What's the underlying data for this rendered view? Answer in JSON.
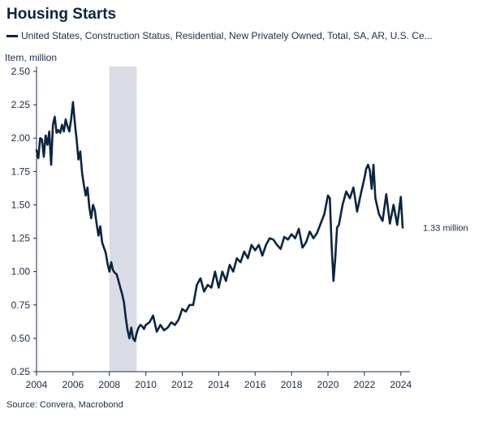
{
  "chart_data": {
    "type": "line",
    "title": "Housing Starts",
    "ylabel": "Item, million",
    "xlim": [
      2004,
      2024.5
    ],
    "ylim": [
      0.25,
      2.5
    ],
    "yticks": [
      0.25,
      0.5,
      0.75,
      1.0,
      1.25,
      1.5,
      1.75,
      2.0,
      2.25,
      2.5
    ],
    "ytick_labels": [
      "0.25",
      "0.50",
      "0.75",
      "1.00",
      "1.25",
      "1.50",
      "1.75",
      "2.00",
      "2.25",
      "2.50"
    ],
    "xticks": [
      2004,
      2006,
      2008,
      2010,
      2012,
      2014,
      2016,
      2018,
      2020,
      2022,
      2024
    ],
    "xtick_labels": [
      "2004",
      "2006",
      "2008",
      "2010",
      "2012",
      "2014",
      "2016",
      "2018",
      "2020",
      "2022",
      "2024"
    ],
    "shaded_periods": [
      {
        "start": 2008.0,
        "end": 2009.5
      }
    ],
    "end_label": "1.33 million",
    "grid": false,
    "legend_position": "top",
    "source": "Source: Convera, Macrobond",
    "series": [
      {
        "name": "United States, Construction Status, Residential, New Privately Owned, Total, SA, AR, U.S. Ce...",
        "color": "#0b2440",
        "x": [
          2004.0,
          2004.1,
          2004.2,
          2004.3,
          2004.4,
          2004.5,
          2004.6,
          2004.7,
          2004.8,
          2004.9,
          2005.0,
          2005.1,
          2005.2,
          2005.3,
          2005.4,
          2005.5,
          2005.6,
          2005.7,
          2005.8,
          2005.9,
          2006.0,
          2006.1,
          2006.2,
          2006.3,
          2006.4,
          2006.5,
          2006.6,
          2006.7,
          2006.8,
          2006.9,
          2007.0,
          2007.1,
          2007.2,
          2007.3,
          2007.4,
          2007.5,
          2007.6,
          2007.7,
          2007.8,
          2007.9,
          2008.0,
          2008.1,
          2008.2,
          2008.3,
          2008.4,
          2008.5,
          2008.6,
          2008.7,
          2008.8,
          2008.9,
          2009.0,
          2009.1,
          2009.2,
          2009.3,
          2009.4,
          2009.5,
          2009.6,
          2009.7,
          2009.8,
          2009.9,
          2010.0,
          2010.2,
          2010.4,
          2010.6,
          2010.8,
          2011.0,
          2011.2,
          2011.4,
          2011.6,
          2011.8,
          2012.0,
          2012.2,
          2012.4,
          2012.6,
          2012.8,
          2013.0,
          2013.2,
          2013.4,
          2013.6,
          2013.8,
          2014.0,
          2014.2,
          2014.4,
          2014.6,
          2014.8,
          2015.0,
          2015.2,
          2015.4,
          2015.6,
          2015.8,
          2016.0,
          2016.2,
          2016.4,
          2016.6,
          2016.8,
          2017.0,
          2017.2,
          2017.4,
          2017.6,
          2017.8,
          2018.0,
          2018.2,
          2018.4,
          2018.6,
          2018.8,
          2019.0,
          2019.2,
          2019.4,
          2019.6,
          2019.8,
          2020.0,
          2020.1,
          2020.2,
          2020.3,
          2020.4,
          2020.5,
          2020.6,
          2020.8,
          2021.0,
          2021.2,
          2021.4,
          2021.6,
          2021.8,
          2022.0,
          2022.1,
          2022.2,
          2022.3,
          2022.4,
          2022.5,
          2022.6,
          2022.8,
          2023.0,
          2023.2,
          2023.4,
          2023.6,
          2023.8,
          2024.0,
          2024.1
        ],
        "values": [
          1.91,
          1.85,
          2.0,
          1.99,
          1.86,
          2.02,
          1.95,
          2.05,
          1.8,
          2.1,
          2.16,
          2.04,
          2.06,
          2.04,
          2.1,
          2.05,
          2.14,
          2.09,
          2.05,
          2.14,
          2.27,
          2.12,
          1.99,
          1.84,
          1.9,
          1.74,
          1.65,
          1.57,
          1.63,
          1.48,
          1.4,
          1.5,
          1.46,
          1.36,
          1.27,
          1.34,
          1.22,
          1.18,
          1.14,
          1.06,
          1.0,
          1.07,
          1.01,
          0.99,
          0.98,
          0.93,
          0.88,
          0.83,
          0.77,
          0.65,
          0.56,
          0.5,
          0.58,
          0.5,
          0.48,
          0.54,
          0.58,
          0.6,
          0.59,
          0.57,
          0.6,
          0.62,
          0.67,
          0.55,
          0.6,
          0.56,
          0.58,
          0.62,
          0.6,
          0.64,
          0.72,
          0.7,
          0.75,
          0.75,
          0.9,
          0.95,
          0.85,
          0.9,
          0.88,
          1.0,
          0.88,
          1.0,
          0.93,
          1.05,
          1.0,
          1.1,
          1.07,
          1.15,
          1.1,
          1.2,
          1.16,
          1.2,
          1.12,
          1.2,
          1.25,
          1.24,
          1.2,
          1.17,
          1.26,
          1.24,
          1.28,
          1.25,
          1.32,
          1.18,
          1.22,
          1.3,
          1.25,
          1.29,
          1.36,
          1.43,
          1.57,
          1.55,
          1.2,
          0.93,
          1.1,
          1.33,
          1.35,
          1.5,
          1.6,
          1.55,
          1.63,
          1.45,
          1.58,
          1.7,
          1.77,
          1.8,
          1.76,
          1.62,
          1.8,
          1.55,
          1.43,
          1.38,
          1.58,
          1.36,
          1.5,
          1.35,
          1.56,
          1.33
        ]
      }
    ]
  }
}
